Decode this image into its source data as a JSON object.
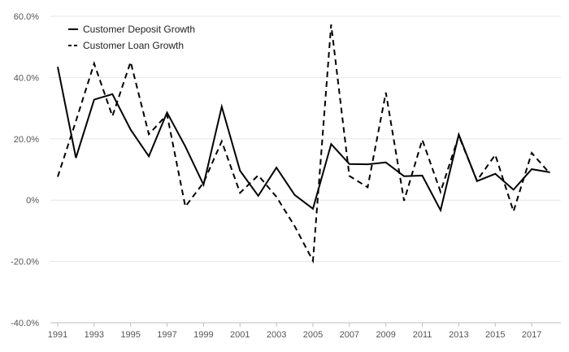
{
  "chart_data": {
    "type": "line",
    "title": "",
    "xlabel": "",
    "ylabel": "",
    "x": [
      1991,
      1992,
      1993,
      1994,
      1995,
      1996,
      1997,
      1998,
      1999,
      2000,
      2001,
      2002,
      2003,
      2004,
      2005,
      2006,
      2007,
      2008,
      2009,
      2010,
      2011,
      2012,
      2013,
      2014,
      2015,
      2016,
      2017,
      2018
    ],
    "x_tick_labels": [
      "1991",
      "1993",
      "1995",
      "1997",
      "1999",
      "2001",
      "2003",
      "2005",
      "2007",
      "2009",
      "2011",
      "2013",
      "2015",
      "2017"
    ],
    "ylim": [
      -40,
      60
    ],
    "y_ticks": [
      -40,
      -20,
      0,
      20,
      40,
      60
    ],
    "y_tick_labels": [
      "-40.0%",
      "-20.0%",
      "0%",
      "20.0%",
      "40.0%",
      "60.0%"
    ],
    "grid": "horizontal",
    "legend_position": "top-left",
    "series": [
      {
        "name": "Customer Deposit Growth",
        "style": "solid",
        "color": "#000000",
        "values": [
          43.5,
          13.8,
          32.8,
          34.6,
          23.0,
          14.3,
          28.6,
          17.5,
          5.0,
          30.5,
          9.6,
          1.4,
          10.6,
          1.7,
          -2.8,
          18.3,
          11.8,
          11.7,
          12.3,
          7.8,
          8.0,
          -3.3,
          21.4,
          6.2,
          8.6,
          3.4,
          10.1,
          9.1
        ]
      },
      {
        "name": "Customer Loan Growth",
        "style": "dashed",
        "color": "#000000",
        "values": [
          7.6,
          25.8,
          44.6,
          27.4,
          45.1,
          21.5,
          27.9,
          -2.1,
          5.7,
          19.2,
          2.4,
          8.1,
          1.1,
          -8.5,
          -19.8,
          57.3,
          7.9,
          4.2,
          35.1,
          -0.2,
          19.7,
          2.7,
          21.0,
          6.4,
          14.8,
          -3.7,
          15.4,
          8.7
        ]
      }
    ]
  }
}
